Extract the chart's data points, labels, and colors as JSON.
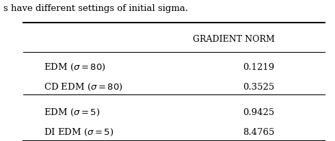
{
  "caption": "s have different settings of initial sigma.",
  "header": "Gradient Norm",
  "rows": [
    {
      "label": "EDM ($\\sigma = 80$)",
      "value": "0.1219"
    },
    {
      "label": "CD EDM ($\\sigma = 80$)",
      "value": "0.3525"
    },
    {
      "label": "EDM ($\\sigma = 5$)",
      "value": "0.9425"
    },
    {
      "label": "DI EDM ($\\sigma = 5$)",
      "value": "8.4765"
    }
  ],
  "group_divider_after": 1,
  "background_color": "#ffffff",
  "text_color": "#000000",
  "figsize": [
    4.9,
    2.06
  ],
  "dpi": 100
}
